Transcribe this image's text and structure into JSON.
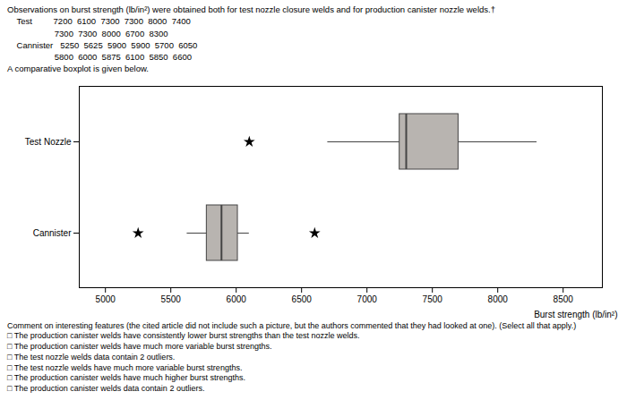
{
  "chart_data": {
    "type": "box",
    "orientation": "horizontal",
    "title": "Observations on burst strength (lb/in²) were obtained both for test nozzle closure welds and for production canister nozzle welds.†",
    "subtitle": [
      "    Test         7200  6100  7300  7300  8000  7400",
      "                    7300  7300  8000  6700  8300",
      "    Cannister   5250  5625  5900  5900  5700  6050",
      "                    5800  6000  5875  6100  5850  6600",
      "A comparative boxplot is given below."
    ],
    "categories": [
      "Test Nozzle",
      "Cannister"
    ],
    "values": [
      [
        7200,
        6100,
        7300,
        7300,
        8000,
        7400,
        7300,
        7300,
        8000,
        6700,
        8300
      ],
      [
        5250,
        5625,
        5900,
        5900,
        5700,
        6050,
        5800,
        6000,
        5875,
        6100,
        5850,
        6600
      ]
    ],
    "color": "#b8b4b0",
    "marker": "star",
    "xlabel": "Burst strength (lb/in²)",
    "xlim": [
      4800,
      8800
    ],
    "xticks": [
      5000,
      5500,
      6000,
      6500,
      7000,
      7500,
      8000,
      8500
    ],
    "grid": false,
    "annotations": [
      "Comment on interesting features (the cited article did not include such a picture, but the authors commented that they had looked at one). (Select all that apply.)",
      "□ The production canister welds have consistently lower burst strengths than the test nozzle welds.",
      "□ The production canister welds have much more variable burst strengths.",
      "□ The test nozzle welds data contain 2 outliers.",
      "□ The test nozzle welds have much more variable burst strengths.",
      "□ The production canister welds have much higher burst strengths.",
      "□ The production canister welds data contain 2 outliers."
    ]
  }
}
